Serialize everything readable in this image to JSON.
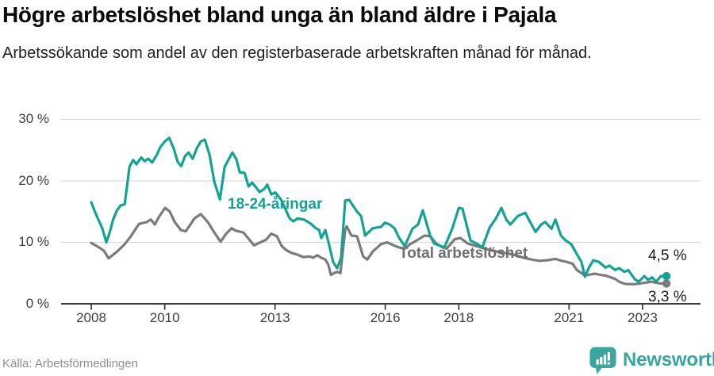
{
  "header": {
    "title": "Högre arbetslöshet bland unga än bland äldre i Pajala",
    "subtitle": "Arbetssökande som andel av den registerbaserade arbetskraften månad för månad."
  },
  "chart_data": {
    "type": "line",
    "grid": true,
    "legend_position": "inline-labels",
    "x_axis": {
      "range": [
        2007.2,
        2024.6
      ],
      "ticks": [
        2008,
        2010,
        2013,
        2016,
        2018,
        2021,
        2023
      ],
      "tick_labels": [
        "2008",
        "2010",
        "2013",
        "2016",
        "2018",
        "2021",
        "2023"
      ]
    },
    "y_axis": {
      "range": [
        0,
        30
      ],
      "ticks": [
        0,
        10,
        20,
        30
      ],
      "tick_labels": [
        "0 %",
        "10 %",
        "20 %",
        "30 %"
      ],
      "unit": "%"
    },
    "series": [
      {
        "key": "youth",
        "name": "18-24-åringar",
        "color": "#13a396",
        "end_label": "4,5 %",
        "end_value": 4.5,
        "points": [
          [
            2008.0,
            16.5
          ],
          [
            2008.1,
            15.0
          ],
          [
            2008.2,
            13.6
          ],
          [
            2008.3,
            12.3
          ],
          [
            2008.41,
            10.0
          ],
          [
            2008.5,
            11.6
          ],
          [
            2008.6,
            13.8
          ],
          [
            2008.7,
            15.2
          ],
          [
            2008.8,
            16.0
          ],
          [
            2008.91,
            16.2
          ],
          [
            2009.04,
            22.3
          ],
          [
            2009.14,
            23.4
          ],
          [
            2009.23,
            22.7
          ],
          [
            2009.36,
            23.8
          ],
          [
            2009.45,
            23.2
          ],
          [
            2009.55,
            23.6
          ],
          [
            2009.66,
            23.0
          ],
          [
            2009.79,
            24.3
          ],
          [
            2009.88,
            25.5
          ],
          [
            2010.0,
            26.4
          ],
          [
            2010.12,
            27.0
          ],
          [
            2010.25,
            25.2
          ],
          [
            2010.35,
            23.1
          ],
          [
            2010.45,
            22.4
          ],
          [
            2010.55,
            24.0
          ],
          [
            2010.65,
            24.6
          ],
          [
            2010.76,
            23.6
          ],
          [
            2010.87,
            25.3
          ],
          [
            2010.98,
            26.4
          ],
          [
            2011.09,
            26.7
          ],
          [
            2011.22,
            24.2
          ],
          [
            2011.35,
            19.8
          ],
          [
            2011.5,
            17.0
          ],
          [
            2011.63,
            22.3
          ],
          [
            2011.84,
            24.6
          ],
          [
            2011.95,
            23.5
          ],
          [
            2012.04,
            21.4
          ],
          [
            2012.17,
            21.3
          ],
          [
            2012.28,
            19.1
          ],
          [
            2012.38,
            19.7
          ],
          [
            2012.5,
            18.8
          ],
          [
            2012.58,
            18.2
          ],
          [
            2012.71,
            18.7
          ],
          [
            2012.79,
            19.4
          ],
          [
            2012.9,
            17.8
          ],
          [
            2013.01,
            18.1
          ],
          [
            2013.18,
            16.8
          ],
          [
            2013.3,
            15.2
          ],
          [
            2013.4,
            13.9
          ],
          [
            2013.5,
            13.4
          ],
          [
            2013.61,
            13.9
          ],
          [
            2013.79,
            13.7
          ],
          [
            2013.98,
            13.0
          ],
          [
            2014.09,
            12.4
          ],
          [
            2014.2,
            12.0
          ],
          [
            2014.26,
            10.7
          ],
          [
            2014.37,
            12.0
          ],
          [
            2014.48,
            9.4
          ],
          [
            2014.58,
            6.8
          ],
          [
            2014.69,
            5.8
          ],
          [
            2014.8,
            7.5
          ],
          [
            2014.91,
            16.8
          ],
          [
            2015.02,
            16.9
          ],
          [
            2015.23,
            15.0
          ],
          [
            2015.34,
            14.3
          ],
          [
            2015.45,
            11.1
          ],
          [
            2015.66,
            12.3
          ],
          [
            2015.88,
            12.5
          ],
          [
            2015.99,
            13.2
          ],
          [
            2016.12,
            12.9
          ],
          [
            2016.25,
            12.3
          ],
          [
            2016.38,
            10.7
          ],
          [
            2016.53,
            9.4
          ],
          [
            2016.74,
            12.2
          ],
          [
            2016.89,
            12.9
          ],
          [
            2017.02,
            15.2
          ],
          [
            2017.22,
            11.1
          ],
          [
            2017.33,
            9.8
          ],
          [
            2017.61,
            9.2
          ],
          [
            2017.82,
            12.2
          ],
          [
            2018.0,
            15.6
          ],
          [
            2018.1,
            15.5
          ],
          [
            2018.32,
            10.3
          ],
          [
            2018.51,
            9.7
          ],
          [
            2018.64,
            9.2
          ],
          [
            2018.84,
            12.4
          ],
          [
            2019.01,
            13.9
          ],
          [
            2019.16,
            15.6
          ],
          [
            2019.29,
            13.7
          ],
          [
            2019.4,
            12.9
          ],
          [
            2019.61,
            14.3
          ],
          [
            2019.81,
            14.8
          ],
          [
            2019.94,
            13.3
          ],
          [
            2020.09,
            11.7
          ],
          [
            2020.24,
            12.9
          ],
          [
            2020.35,
            13.3
          ],
          [
            2020.52,
            12.2
          ],
          [
            2020.63,
            13.7
          ],
          [
            2020.78,
            11.1
          ],
          [
            2020.91,
            10.3
          ],
          [
            2021.06,
            9.7
          ],
          [
            2021.21,
            8.1
          ],
          [
            2021.34,
            6.8
          ],
          [
            2021.43,
            4.4
          ],
          [
            2021.55,
            6.0
          ],
          [
            2021.66,
            7.1
          ],
          [
            2021.82,
            6.8
          ],
          [
            2021.99,
            5.9
          ],
          [
            2022.1,
            6.2
          ],
          [
            2022.25,
            5.5
          ],
          [
            2022.36,
            5.8
          ],
          [
            2022.51,
            5.2
          ],
          [
            2022.61,
            5.5
          ],
          [
            2022.79,
            4.0
          ],
          [
            2022.89,
            3.6
          ],
          [
            2023.05,
            4.5
          ],
          [
            2023.15,
            3.9
          ],
          [
            2023.26,
            4.3
          ],
          [
            2023.37,
            3.6
          ],
          [
            2023.5,
            4.5
          ],
          [
            2023.65,
            4.5
          ]
        ]
      },
      {
        "key": "total",
        "name": "Total arbetslöshet",
        "color": "#7b7b7b",
        "end_label": "3,3 %",
        "end_value": 3.3,
        "points": [
          [
            2008.0,
            9.9
          ],
          [
            2008.15,
            9.4
          ],
          [
            2008.26,
            9.0
          ],
          [
            2008.35,
            8.6
          ],
          [
            2008.47,
            7.4
          ],
          [
            2008.6,
            8.0
          ],
          [
            2008.72,
            8.6
          ],
          [
            2008.91,
            9.7
          ],
          [
            2009.08,
            11.0
          ],
          [
            2009.3,
            13.0
          ],
          [
            2009.51,
            13.3
          ],
          [
            2009.62,
            13.7
          ],
          [
            2009.73,
            12.9
          ],
          [
            2009.85,
            14.2
          ],
          [
            2010.01,
            15.6
          ],
          [
            2010.14,
            15.0
          ],
          [
            2010.27,
            13.3
          ],
          [
            2010.44,
            12.0
          ],
          [
            2010.57,
            11.8
          ],
          [
            2010.81,
            13.9
          ],
          [
            2010.98,
            14.6
          ],
          [
            2011.17,
            13.3
          ],
          [
            2011.35,
            11.6
          ],
          [
            2011.52,
            10.1
          ],
          [
            2011.67,
            11.4
          ],
          [
            2011.82,
            12.3
          ],
          [
            2011.93,
            11.9
          ],
          [
            2012.14,
            11.6
          ],
          [
            2012.28,
            10.6
          ],
          [
            2012.43,
            9.5
          ],
          [
            2012.6,
            10.0
          ],
          [
            2012.75,
            10.4
          ],
          [
            2012.9,
            11.4
          ],
          [
            2013.05,
            11.0
          ],
          [
            2013.18,
            9.4
          ],
          [
            2013.29,
            8.8
          ],
          [
            2013.44,
            8.3
          ],
          [
            2013.61,
            8.0
          ],
          [
            2013.77,
            7.6
          ],
          [
            2013.94,
            7.7
          ],
          [
            2014.04,
            7.5
          ],
          [
            2014.15,
            7.9
          ],
          [
            2014.26,
            7.5
          ],
          [
            2014.37,
            7.2
          ],
          [
            2014.45,
            6.4
          ],
          [
            2014.52,
            4.7
          ],
          [
            2014.6,
            5.0
          ],
          [
            2014.69,
            5.2
          ],
          [
            2014.78,
            5.0
          ],
          [
            2014.91,
            12.0
          ],
          [
            2014.95,
            12.6
          ],
          [
            2015.08,
            11.1
          ],
          [
            2015.23,
            11.0
          ],
          [
            2015.4,
            7.7
          ],
          [
            2015.51,
            7.2
          ],
          [
            2015.66,
            8.5
          ],
          [
            2015.88,
            9.7
          ],
          [
            2016.05,
            10.0
          ],
          [
            2016.27,
            9.4
          ],
          [
            2016.42,
            9.1
          ],
          [
            2016.53,
            9.0
          ],
          [
            2016.68,
            9.7
          ],
          [
            2016.85,
            10.3
          ],
          [
            2017.07,
            11.1
          ],
          [
            2017.22,
            11.0
          ],
          [
            2017.39,
            9.8
          ],
          [
            2017.56,
            9.2
          ],
          [
            2017.67,
            9.0
          ],
          [
            2017.89,
            10.5
          ],
          [
            2018.04,
            10.7
          ],
          [
            2018.25,
            9.8
          ],
          [
            2018.47,
            9.4
          ],
          [
            2018.69,
            9.0
          ],
          [
            2018.9,
            8.7
          ],
          [
            2019.12,
            8.4
          ],
          [
            2019.33,
            8.2
          ],
          [
            2019.55,
            7.9
          ],
          [
            2019.76,
            7.5
          ],
          [
            2019.98,
            7.2
          ],
          [
            2020.2,
            7.0
          ],
          [
            2020.41,
            7.1
          ],
          [
            2020.63,
            7.3
          ],
          [
            2020.8,
            7.0
          ],
          [
            2020.95,
            6.8
          ],
          [
            2021.1,
            6.5
          ],
          [
            2021.21,
            5.5
          ],
          [
            2021.34,
            5.0
          ],
          [
            2021.43,
            4.6
          ],
          [
            2021.6,
            4.8
          ],
          [
            2021.71,
            4.9
          ],
          [
            2021.86,
            4.7
          ],
          [
            2021.99,
            4.6
          ],
          [
            2022.14,
            4.3
          ],
          [
            2022.27,
            4.0
          ],
          [
            2022.36,
            3.6
          ],
          [
            2022.49,
            3.3
          ],
          [
            2022.58,
            3.2
          ],
          [
            2022.79,
            3.2
          ],
          [
            2022.92,
            3.3
          ],
          [
            2023.03,
            3.4
          ],
          [
            2023.15,
            3.5
          ],
          [
            2023.24,
            3.6
          ],
          [
            2023.37,
            3.4
          ],
          [
            2023.5,
            3.3
          ],
          [
            2023.65,
            3.3
          ]
        ]
      }
    ]
  },
  "footer": {
    "source": "Källa: Arbetsförmedlingen",
    "brand": "Newsworthy",
    "brand_icon": "newsworthy-speech-bubble-bar-chart-icon",
    "brand_color": "#38a5a0"
  },
  "colors": {
    "accent_teal": "#13a396",
    "line_gray": "#7b7b7b",
    "grid": "#dadada",
    "axis": "#3e3e3e",
    "tick_text": "#3d3d3d",
    "title_text": "#0b0b0b",
    "source_text": "#8e8e8e"
  }
}
